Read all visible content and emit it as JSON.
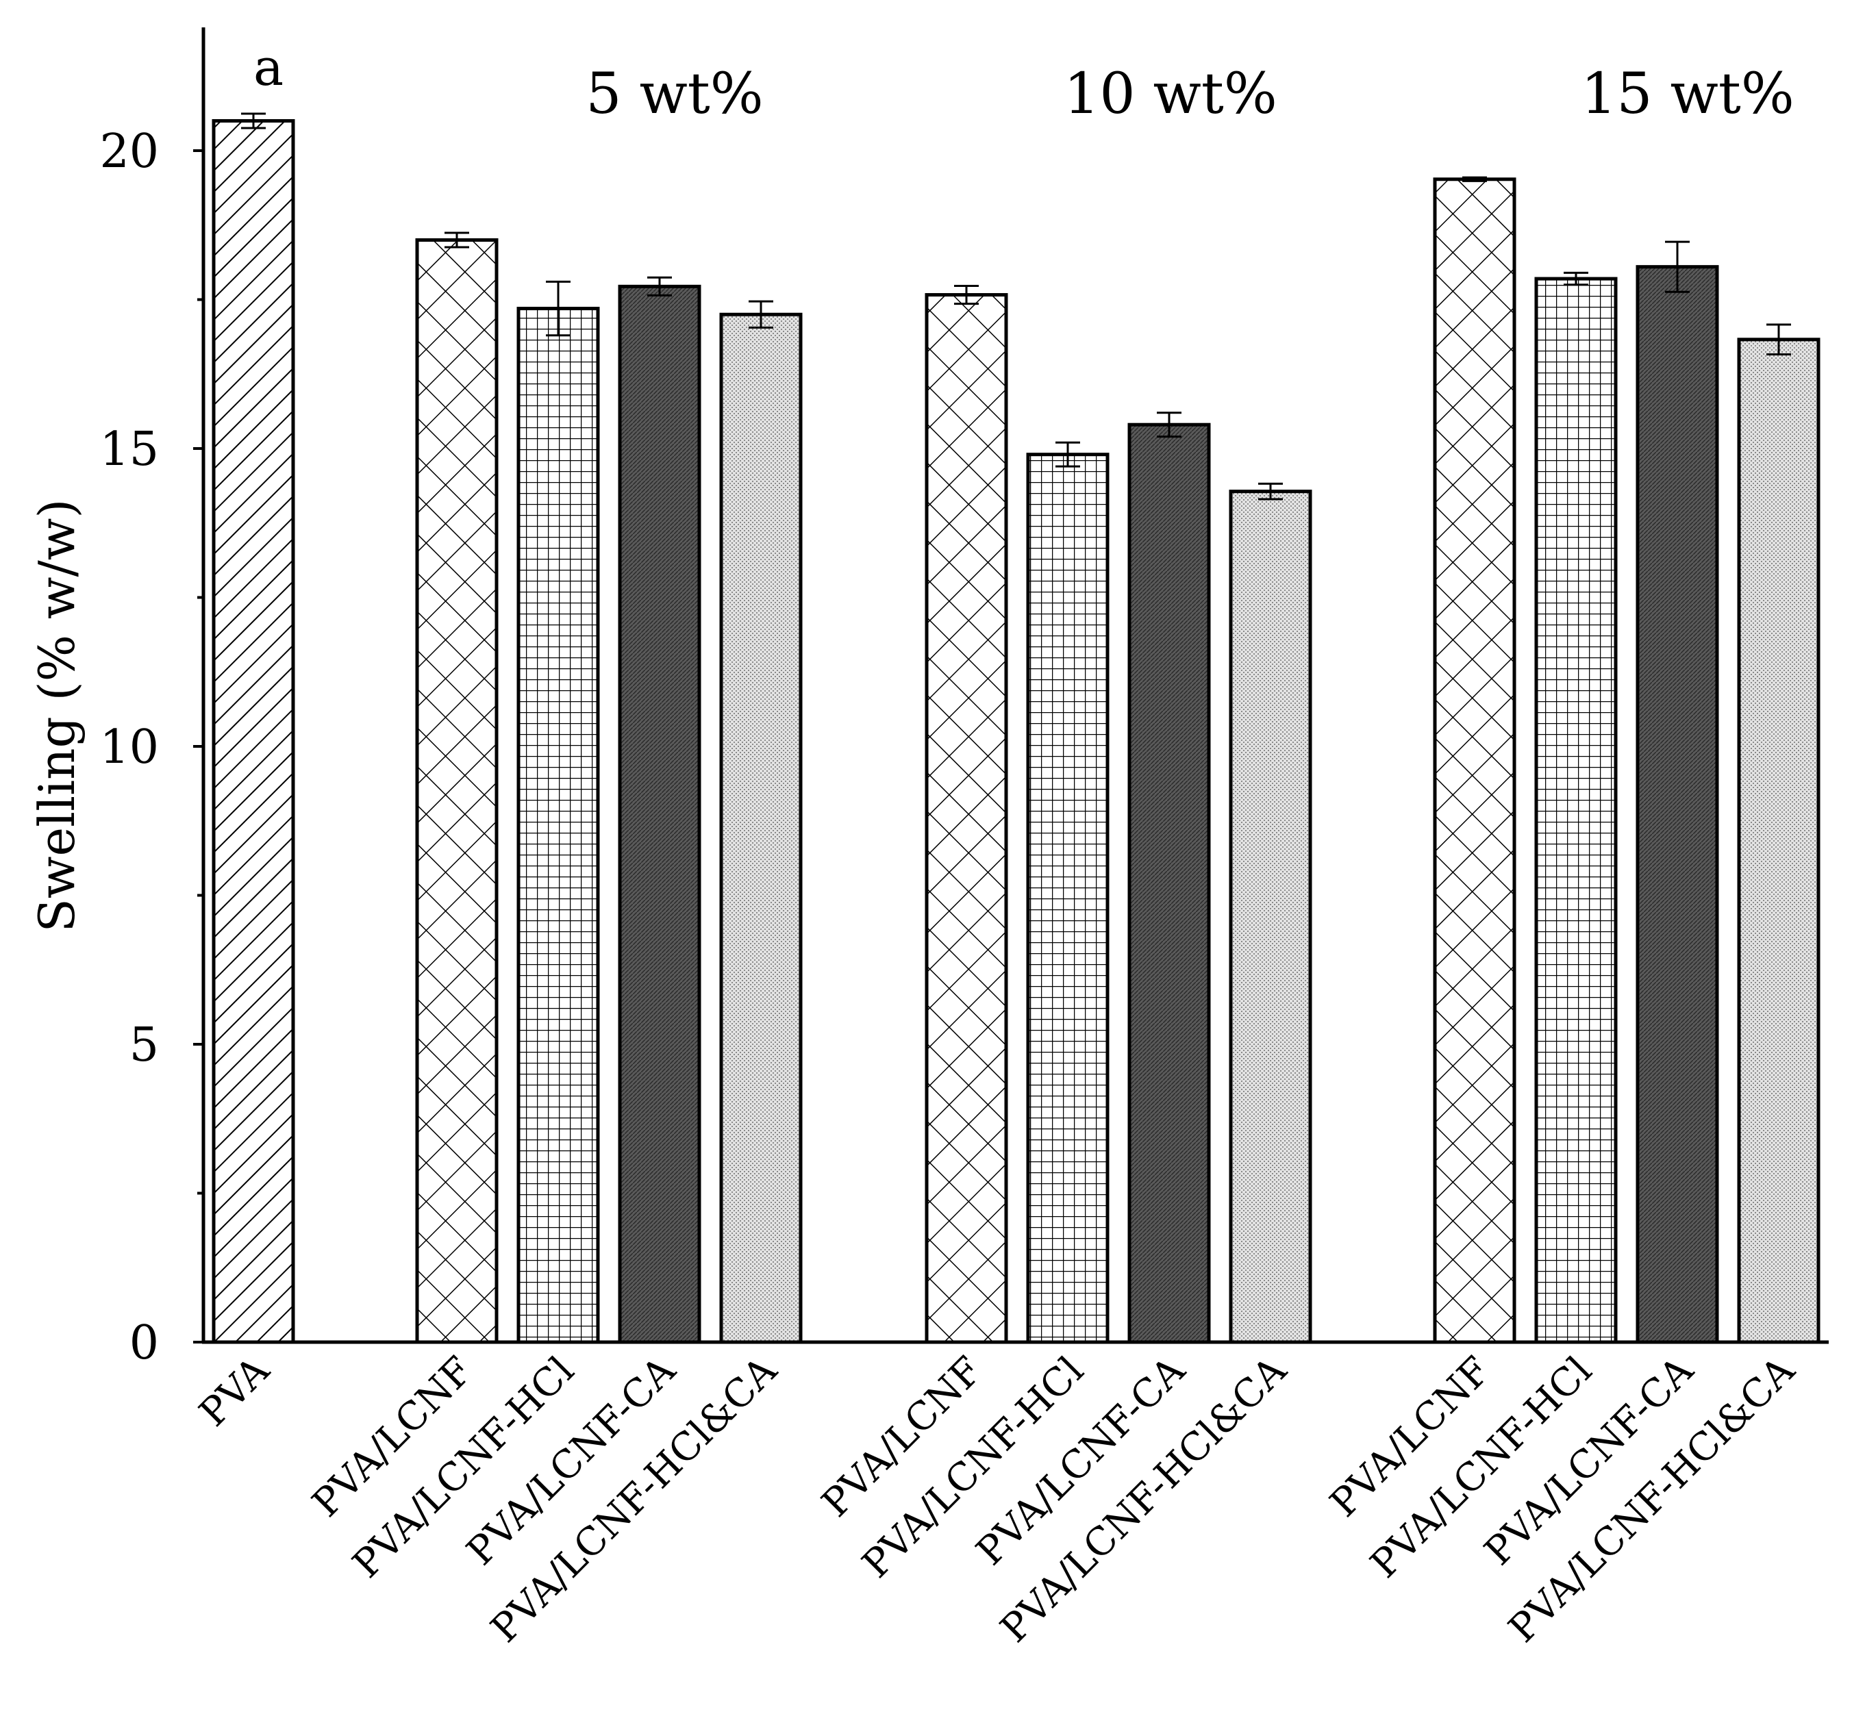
{
  "chart_data": {
    "type": "bar",
    "title": "",
    "xlabel": "",
    "ylabel": "Swelling (% w/w)",
    "ylim": [
      0,
      22
    ],
    "yticks": [
      0,
      5,
      10,
      15,
      20
    ],
    "grid": false,
    "panel_label": "a",
    "groups": [
      {
        "label": "",
        "bars": [
          {
            "name": "PVA",
            "value": 20.5,
            "error": 0.12,
            "pattern": "diag"
          }
        ]
      },
      {
        "label": "5 wt%",
        "bars": [
          {
            "name": "PVA/LCNF",
            "value": 18.5,
            "error": 0.12,
            "pattern": "crosshatch"
          },
          {
            "name": "PVA/LCNF-HCl",
            "value": 17.35,
            "error": 0.45,
            "pattern": "grid"
          },
          {
            "name": "PVA/LCNF-CA",
            "value": 17.72,
            "error": 0.15,
            "pattern": "dark"
          },
          {
            "name": "PVA/LCNF-HCl&CA",
            "value": 17.25,
            "error": 0.22,
            "pattern": "dots"
          }
        ]
      },
      {
        "label": "10 wt%",
        "bars": [
          {
            "name": "PVA/LCNF",
            "value": 17.58,
            "error": 0.15,
            "pattern": "crosshatch"
          },
          {
            "name": "PVA/LCNF-HCl",
            "value": 14.9,
            "error": 0.2,
            "pattern": "grid"
          },
          {
            "name": "PVA/LCNF-CA",
            "value": 15.4,
            "error": 0.2,
            "pattern": "dark"
          },
          {
            "name": "PVA/LCNF-HCl&CA",
            "value": 14.28,
            "error": 0.13,
            "pattern": "dots"
          }
        ]
      },
      {
        "label": "15 wt%",
        "bars": [
          {
            "name": "PVA/LCNF",
            "value": 19.52,
            "error": 0.03,
            "pattern": "crosshatch"
          },
          {
            "name": "PVA/LCNF-HCl",
            "value": 17.85,
            "error": 0.1,
            "pattern": "grid"
          },
          {
            "name": "PVA/LCNF-CA",
            "value": 18.05,
            "error": 0.42,
            "pattern": "dark"
          },
          {
            "name": "PVA/LCNF-HCl&CA",
            "value": 16.83,
            "error": 0.25,
            "pattern": "dots"
          }
        ]
      }
    ]
  },
  "colors": {
    "axis": "#000000",
    "bar_fill": "#ffffff",
    "dark_fill": "#5a5a5a",
    "dots_fill": "#d8d8d8",
    "pattern_stroke": "#000000"
  }
}
